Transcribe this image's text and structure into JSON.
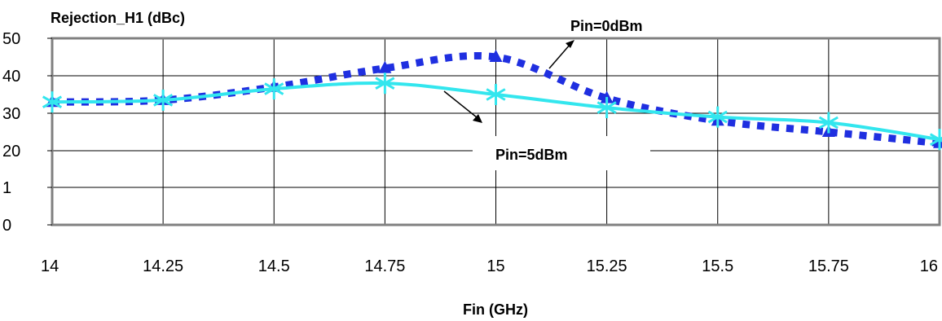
{
  "chart_data": {
    "type": "line",
    "title": "",
    "ylabel": "Rejection_H1 (dBc)",
    "xlabel": "Fin (GHz)",
    "x_ticks": [
      "14",
      "14.25",
      "14.5",
      "14.75",
      "15",
      "15.25",
      "15.5",
      "15.75",
      "16"
    ],
    "y_ticks": [
      "0",
      "1",
      "20",
      "30",
      "40",
      "50"
    ],
    "xlim": [
      14,
      16
    ],
    "ylim": [
      0,
      50
    ],
    "grid": true,
    "series": [
      {
        "name": "Pin=0dBm",
        "style": "dotted",
        "color": "#1f2fe0",
        "marker": "triangle",
        "x": [
          14,
          14.25,
          14.5,
          14.75,
          15,
          15.25,
          15.5,
          15.75,
          16
        ],
        "y": [
          33,
          33.5,
          37,
          42,
          45,
          34,
          28,
          25,
          22
        ]
      },
      {
        "name": "Pin=5dBm",
        "style": "solid",
        "color": "#33e6ee",
        "marker": "asterisk",
        "x": [
          14,
          14.25,
          14.5,
          14.75,
          15,
          15.25,
          15.5,
          15.75,
          16
        ],
        "y": [
          33,
          33.5,
          36.5,
          38,
          35,
          31.5,
          29,
          27.5,
          23
        ]
      }
    ],
    "annotations": [
      {
        "text": "Pin=0dBm",
        "series": 0
      },
      {
        "text": "Pin=5dBm",
        "series": 1
      }
    ]
  }
}
